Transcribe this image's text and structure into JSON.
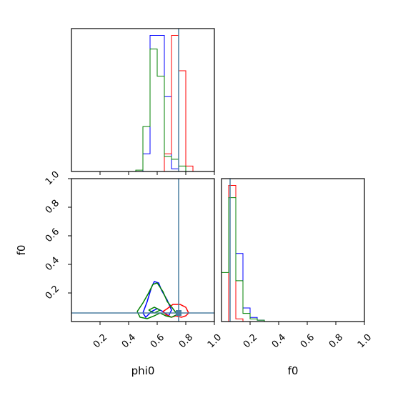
{
  "chart_data": {
    "type": "corner",
    "parameters": [
      "phi0",
      "f0"
    ],
    "xlabels": [
      "phi0",
      "f0"
    ],
    "ylabels": [
      "",
      "f0"
    ],
    "truth": {
      "phi0": 0.75,
      "f0": 0.06,
      "color": "#4a7fa0"
    },
    "axes": {
      "phi0": {
        "lim": [
          0.0,
          1.0
        ],
        "ticks": [
          "0.2",
          "0.4",
          "0.6",
          "0.8",
          "1.0"
        ]
      },
      "f0": {
        "lim": [
          0.0,
          1.0
        ],
        "ticks": [
          "0.2",
          "0.4",
          "0.6",
          "0.8",
          "1.0"
        ]
      }
    },
    "series": [
      {
        "color": "#0000ff",
        "hist_phi0": {
          "edges": [
            0.5,
            0.55,
            0.6,
            0.65,
            0.7,
            0.75
          ],
          "counts": [
            0.13,
            1.0,
            1.0,
            0.55,
            0.02
          ]
        },
        "hist_f0": {
          "edges": [
            0.05,
            0.1,
            0.15,
            0.2,
            0.25,
            0.3
          ],
          "counts": [
            1.0,
            0.5,
            0.1,
            0.03,
            0.01
          ]
        },
        "contours": [
          [
            [
              0.5,
              0.06
            ],
            [
              0.53,
              0.14
            ],
            [
              0.56,
              0.24
            ],
            [
              0.58,
              0.28
            ],
            [
              0.61,
              0.27
            ],
            [
              0.63,
              0.22
            ],
            [
              0.67,
              0.15
            ],
            [
              0.7,
              0.08
            ],
            [
              0.68,
              0.04
            ],
            [
              0.64,
              0.07
            ],
            [
              0.6,
              0.09
            ],
            [
              0.56,
              0.07
            ],
            [
              0.52,
              0.03
            ],
            [
              0.5,
              0.06
            ]
          ]
        ]
      },
      {
        "color": "#ff0000",
        "hist_phi0": {
          "edges": [
            0.65,
            0.7,
            0.75,
            0.8,
            0.85
          ],
          "counts": [
            0.13,
            1.0,
            0.74,
            0.04
          ]
        },
        "hist_f0": {
          "edges": [
            0.0,
            0.05,
            0.1,
            0.15,
            0.2
          ],
          "counts": [
            0.0,
            1.0,
            0.02,
            0.0
          ]
        },
        "contours": [
          [
            [
              0.64,
              0.07
            ],
            [
              0.67,
              0.09
            ],
            [
              0.71,
              0.12
            ],
            [
              0.76,
              0.12
            ],
            [
              0.8,
              0.1
            ],
            [
              0.82,
              0.06
            ],
            [
              0.8,
              0.04
            ],
            [
              0.77,
              0.03
            ],
            [
              0.73,
              0.04
            ],
            [
              0.7,
              0.03
            ],
            [
              0.66,
              0.05
            ],
            [
              0.64,
              0.07
            ]
          ]
        ]
      },
      {
        "color": "#008000",
        "hist_phi0": {
          "edges": [
            0.45,
            0.5,
            0.55,
            0.6,
            0.65,
            0.7,
            0.75,
            0.8
          ],
          "counts": [
            0.01,
            0.33,
            0.9,
            0.7,
            0.11,
            0.09,
            0.04
          ]
        },
        "hist_f0": {
          "edges": [
            0.0,
            0.05,
            0.1,
            0.15,
            0.2,
            0.25,
            0.3
          ],
          "counts": [
            0.36,
            0.91,
            0.3,
            0.06,
            0.02,
            0.01
          ]
        },
        "contours": [
          [
            [
              0.46,
              0.07
            ],
            [
              0.5,
              0.13
            ],
            [
              0.54,
              0.2
            ],
            [
              0.57,
              0.26
            ],
            [
              0.6,
              0.27
            ],
            [
              0.64,
              0.21
            ],
            [
              0.67,
              0.14
            ],
            [
              0.71,
              0.09
            ],
            [
              0.74,
              0.05
            ],
            [
              0.7,
              0.03
            ],
            [
              0.66,
              0.04
            ],
            [
              0.62,
              0.06
            ],
            [
              0.58,
              0.04
            ],
            [
              0.53,
              0.02
            ],
            [
              0.48,
              0.03
            ],
            [
              0.46,
              0.07
            ]
          ],
          [
            [
              0.54,
              0.08
            ],
            [
              0.58,
              0.1
            ],
            [
              0.62,
              0.08
            ],
            [
              0.58,
              0.06
            ],
            [
              0.54,
              0.08
            ]
          ]
        ]
      }
    ]
  }
}
